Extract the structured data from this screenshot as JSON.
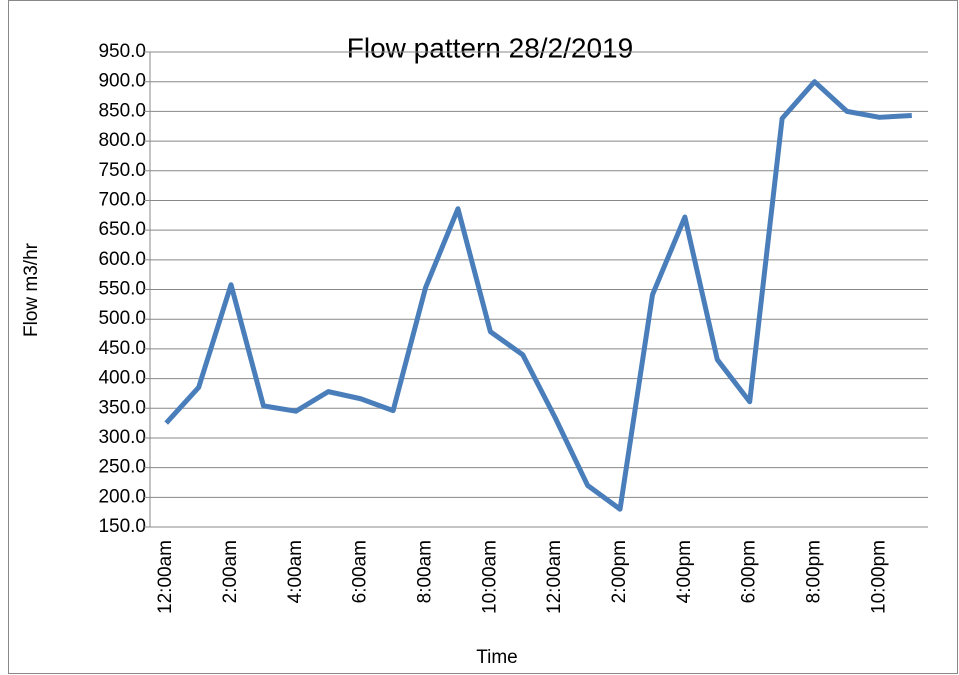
{
  "chart_data": {
    "type": "line",
    "title": "Flow pattern 28/2/2019",
    "x_label": "Time",
    "y_label": "Flow m3/hr",
    "categories": [
      "12:00am",
      null,
      "2:00am",
      null,
      "4:00am",
      null,
      "6:00am",
      null,
      "8:00am",
      null,
      "10:00am",
      null,
      "12:00am",
      null,
      "2:00pm",
      null,
      "4:00pm",
      null,
      "6:00pm",
      null,
      "8:00pm",
      null,
      "10:00pm",
      null
    ],
    "series": [
      {
        "name": "Flow",
        "color": "#4a7ebb",
        "values": [
          325,
          385,
          558,
          354,
          345,
          378,
          366,
          346,
          553,
          686,
          479,
          440,
          334,
          220,
          180,
          541,
          672,
          432,
          361,
          838,
          900,
          850,
          840,
          843
        ]
      }
    ],
    "ylim": [
      150,
      950
    ],
    "yticks": [
      {
        "value": 150,
        "label": "150.0"
      },
      {
        "value": 200,
        "label": "200.0"
      },
      {
        "value": 250,
        "label": "250.0"
      },
      {
        "value": 300,
        "label": "300.0"
      },
      {
        "value": 350,
        "label": "350.0"
      },
      {
        "value": 400,
        "label": "400.0"
      },
      {
        "value": 450,
        "label": "450.0"
      },
      {
        "value": 500,
        "label": "500.0"
      },
      {
        "value": 550,
        "label": "550.0"
      },
      {
        "value": 600,
        "label": "600.0"
      },
      {
        "value": 650,
        "label": "650.0"
      },
      {
        "value": 700,
        "label": "700.0"
      },
      {
        "value": 750,
        "label": "750.0"
      },
      {
        "value": 800,
        "label": "800.0"
      },
      {
        "value": 850,
        "label": "850.0"
      },
      {
        "value": 900,
        "label": "900.0"
      },
      {
        "value": 950,
        "label": "950.0"
      }
    ],
    "grid": true,
    "legend": false
  }
}
